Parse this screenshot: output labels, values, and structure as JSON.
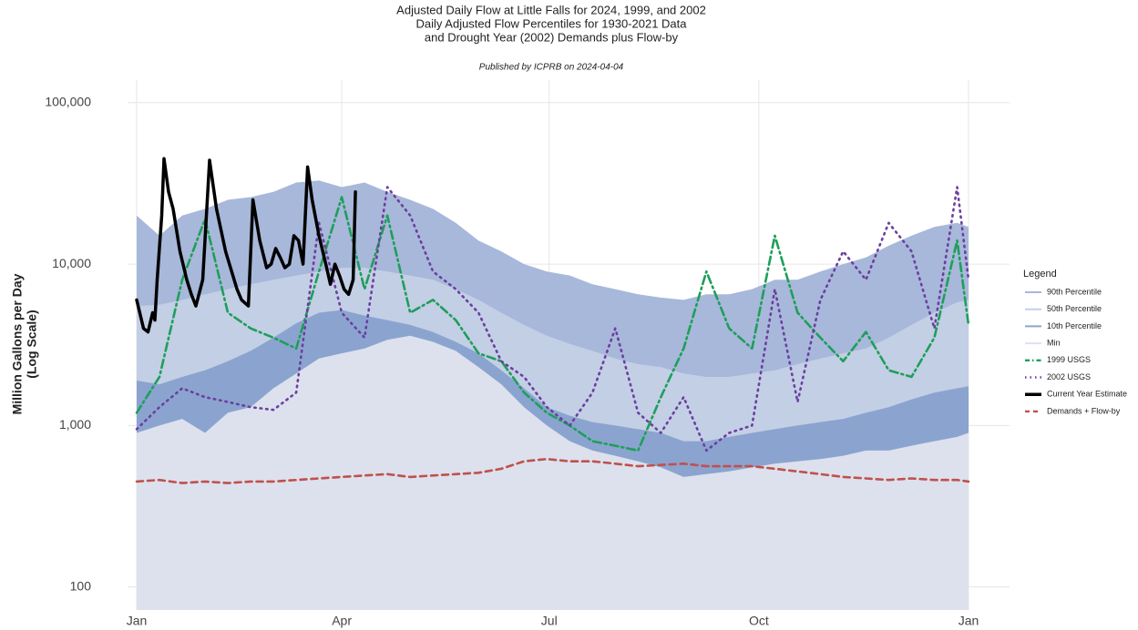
{
  "chart_data": {
    "type": "line",
    "title": [
      "Adjusted Daily Flow at Little Falls for 2024, 1999, and 2002",
      "Daily Adjusted Flow Percentiles for 1930-2021 Data",
      "and Drought Year (2002) Demands plus Flow-by"
    ],
    "subtitle": "Published by ICPRB on 2024-04-04",
    "ylabel": [
      "Million Gallons per Day",
      "(Log Scale)"
    ],
    "legend_title": "Legend",
    "legend": "right",
    "log_y": true,
    "grid": true,
    "xlim": [
      -3,
      384
    ],
    "xticks": [
      {
        "value": 1,
        "label": "Jan"
      },
      {
        "value": 91,
        "label": "Apr"
      },
      {
        "value": 182,
        "label": "Jul"
      },
      {
        "value": 274,
        "label": "Oct"
      },
      {
        "value": 366,
        "label": "Jan"
      }
    ],
    "ylim": [
      72,
      138000
    ],
    "yticks": [
      100,
      {
        "value": 1000,
        "label": "1,000"
      },
      {
        "value": 10000,
        "label": "10,000"
      },
      {
        "value": 100000,
        "label": "100,000"
      }
    ],
    "series": [
      {
        "name": "90th Percentile",
        "color": "#a7b8da",
        "style": "area",
        "x": [
          1,
          11,
          21,
          31,
          41,
          51,
          61,
          71,
          81,
          91,
          101,
          111,
          121,
          131,
          141,
          151,
          161,
          171,
          181,
          191,
          201,
          211,
          221,
          231,
          241,
          251,
          261,
          271,
          281,
          291,
          301,
          311,
          321,
          331,
          341,
          351,
          361,
          366
        ],
        "values": [
          20000,
          15000,
          20000,
          22000,
          25000,
          26000,
          28000,
          32000,
          33000,
          30000,
          32000,
          28000,
          25000,
          22000,
          18000,
          14000,
          12000,
          10000,
          9000,
          8500,
          7500,
          7000,
          6500,
          6200,
          6000,
          6500,
          6500,
          7000,
          8000,
          8000,
          9000,
          10000,
          11000,
          13000,
          15000,
          17000,
          18000,
          17000
        ]
      },
      {
        "name": "50th Percentile",
        "color": "#c3cfe5",
        "style": "area",
        "x": [
          1,
          11,
          21,
          31,
          41,
          51,
          61,
          71,
          81,
          91,
          101,
          111,
          121,
          131,
          141,
          151,
          161,
          171,
          181,
          191,
          201,
          211,
          221,
          231,
          241,
          251,
          261,
          271,
          281,
          291,
          301,
          311,
          321,
          331,
          341,
          351,
          361,
          366
        ],
        "values": [
          5500,
          5600,
          6000,
          6500,
          7000,
          7500,
          8000,
          8500,
          9000,
          9500,
          9500,
          9000,
          8500,
          8000,
          7000,
          6000,
          5000,
          4200,
          3600,
          3200,
          2900,
          2600,
          2400,
          2300,
          2100,
          2000,
          2000,
          2100,
          2200,
          2400,
          2600,
          2800,
          3000,
          3500,
          4200,
          5000,
          5800,
          6000
        ]
      },
      {
        "name": "10th Percentile",
        "color": "#8ba4cf",
        "style": "area",
        "x": [
          1,
          11,
          21,
          31,
          41,
          51,
          61,
          71,
          81,
          91,
          101,
          111,
          121,
          131,
          141,
          151,
          161,
          171,
          181,
          191,
          201,
          211,
          221,
          231,
          241,
          251,
          261,
          271,
          281,
          291,
          301,
          311,
          321,
          331,
          341,
          351,
          361,
          366
        ],
        "values": [
          1900,
          1800,
          2000,
          2200,
          2500,
          2900,
          3500,
          4300,
          5000,
          5200,
          4800,
          4500,
          4200,
          3800,
          3300,
          2800,
          2200,
          1700,
          1300,
          1150,
          1050,
          1000,
          950,
          900,
          800,
          800,
          850,
          900,
          950,
          1000,
          1050,
          1100,
          1200,
          1300,
          1450,
          1600,
          1700,
          1750
        ]
      },
      {
        "name": "Min",
        "color": "#dce1ed",
        "style": "area",
        "x": [
          1,
          11,
          21,
          31,
          41,
          51,
          61,
          71,
          81,
          91,
          101,
          111,
          121,
          131,
          141,
          151,
          161,
          171,
          181,
          191,
          201,
          211,
          221,
          231,
          241,
          251,
          261,
          271,
          281,
          291,
          301,
          311,
          321,
          331,
          341,
          351,
          361,
          366
        ],
        "values": [
          900,
          1000,
          1100,
          900,
          1200,
          1300,
          1700,
          2100,
          2600,
          2800,
          3000,
          3400,
          3600,
          3300,
          2900,
          2300,
          1800,
          1300,
          1000,
          800,
          700,
          650,
          600,
          550,
          480,
          500,
          520,
          550,
          580,
          600,
          620,
          650,
          700,
          700,
          750,
          800,
          850,
          900
        ]
      },
      {
        "name": "1999 USGS",
        "color": "#1f9e5a",
        "style": "dashdot",
        "x": [
          1,
          11,
          21,
          31,
          41,
          51,
          61,
          71,
          81,
          91,
          101,
          111,
          121,
          131,
          141,
          151,
          161,
          171,
          181,
          191,
          201,
          211,
          221,
          231,
          241,
          251,
          261,
          271,
          281,
          291,
          301,
          311,
          321,
          331,
          341,
          351,
          361,
          366
        ],
        "values": [
          1200,
          2000,
          8000,
          19000,
          5000,
          4000,
          3500,
          3000,
          9000,
          26000,
          7000,
          20000,
          5000,
          6000,
          4500,
          2800,
          2500,
          1600,
          1200,
          1000,
          800,
          750,
          700,
          1500,
          3000,
          9000,
          4000,
          3000,
          15000,
          5000,
          3500,
          2500,
          3800,
          2200,
          2000,
          3500,
          14000,
          4200
        ]
      },
      {
        "name": "2002 USGS",
        "color": "#6b3fa0",
        "style": "dotted",
        "x": [
          1,
          11,
          21,
          31,
          41,
          51,
          61,
          71,
          81,
          91,
          101,
          111,
          121,
          131,
          141,
          151,
          161,
          171,
          181,
          191,
          201,
          211,
          221,
          231,
          241,
          251,
          261,
          271,
          281,
          291,
          301,
          311,
          321,
          331,
          341,
          351,
          361,
          366
        ],
        "values": [
          950,
          1300,
          1700,
          1500,
          1400,
          1300,
          1250,
          1600,
          18000,
          5000,
          3500,
          30000,
          20000,
          9000,
          7000,
          5000,
          2500,
          2000,
          1300,
          1000,
          1600,
          4000,
          1200,
          900,
          1500,
          700,
          900,
          1000,
          7000,
          1400,
          6000,
          12000,
          8000,
          18000,
          12000,
          4000,
          30000,
          8000
        ]
      },
      {
        "name": "Current Year Estimate",
        "color": "#000000",
        "style": "solid",
        "x": [
          1,
          4,
          6,
          8,
          9,
          10,
          12,
          13,
          15,
          17,
          20,
          23,
          25,
          27,
          30,
          33,
          36,
          40,
          45,
          47,
          50,
          52,
          55,
          58,
          60,
          62,
          64,
          66,
          68,
          70,
          72,
          74,
          76,
          78,
          81,
          84,
          86,
          88,
          90,
          92,
          94,
          96,
          97
        ],
        "values": [
          6000,
          4000,
          3800,
          5000,
          4500,
          8000,
          20000,
          45000,
          28000,
          22000,
          12000,
          8000,
          6500,
          5500,
          8000,
          44000,
          22000,
          12000,
          7000,
          6000,
          5500,
          25000,
          14000,
          9500,
          10000,
          12500,
          11000,
          9500,
          10000,
          15000,
          14000,
          10000,
          40000,
          25000,
          15000,
          10000,
          7500,
          10000,
          8500,
          7000,
          6500,
          8000,
          28000
        ]
      },
      {
        "name": "Demands + Flow-by",
        "color": "#c0504d",
        "style": "dashed",
        "x": [
          1,
          11,
          21,
          31,
          41,
          51,
          61,
          71,
          81,
          91,
          101,
          111,
          121,
          131,
          141,
          151,
          161,
          171,
          181,
          191,
          201,
          211,
          221,
          231,
          241,
          251,
          261,
          271,
          281,
          291,
          301,
          311,
          321,
          331,
          341,
          351,
          361,
          366
        ],
        "values": [
          450,
          460,
          440,
          450,
          440,
          450,
          450,
          460,
          470,
          480,
          490,
          500,
          480,
          490,
          500,
          510,
          540,
          600,
          620,
          600,
          600,
          580,
          560,
          570,
          580,
          560,
          560,
          560,
          540,
          520,
          500,
          480,
          470,
          460,
          470,
          460,
          460,
          450
        ]
      }
    ]
  }
}
